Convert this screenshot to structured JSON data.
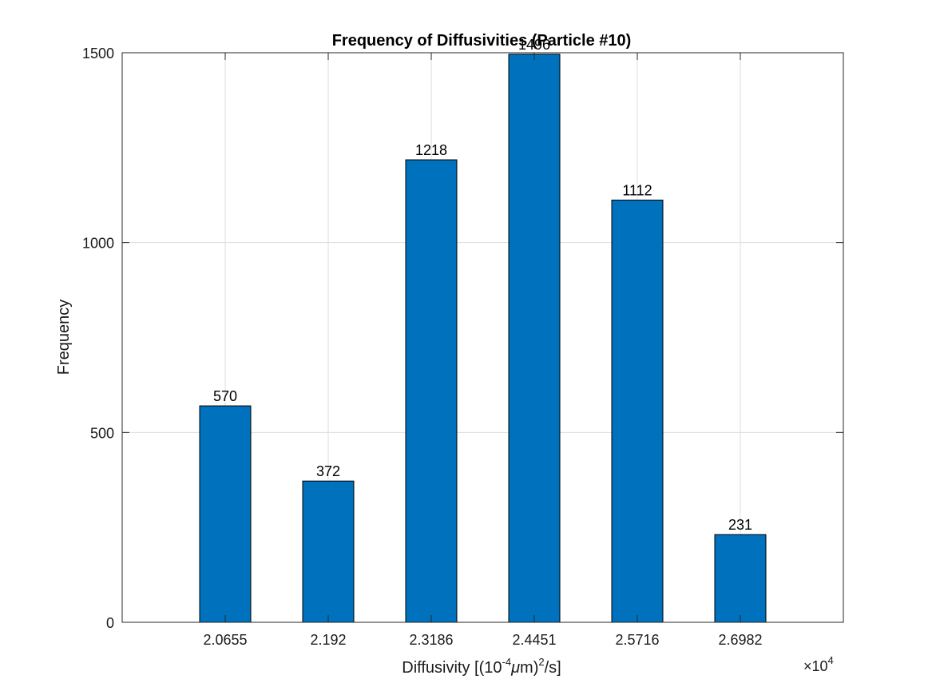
{
  "chart_data": {
    "type": "bar",
    "title": "Frequency of Diffusivities (Particle #10)",
    "xlabel": {
      "prefix": "Diffusivity [(10",
      "exp": "-4",
      "mu": "μ",
      "middle": "m)",
      "sq": "2",
      "suffix": "/s]"
    },
    "ylabel": "Frequency",
    "x_multiplier": {
      "times": "×",
      "base": "10",
      "exp": "4"
    },
    "categories": [
      "2.0655",
      "2.192",
      "2.3186",
      "2.4451",
      "2.5716",
      "2.6982"
    ],
    "values": [
      570,
      372,
      1218,
      1496,
      1112,
      231
    ],
    "data_labels": [
      "570",
      "372",
      "1218",
      "1496",
      "1112",
      "231"
    ],
    "ylim": [
      0,
      1500
    ],
    "yticks": [
      0,
      500,
      1000,
      1500
    ],
    "ytick_labels": [
      "0",
      "500",
      "1000",
      "1500"
    ],
    "grid": true,
    "bar_color": "#0072BD"
  }
}
